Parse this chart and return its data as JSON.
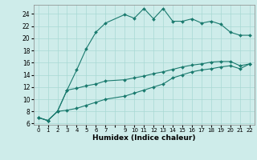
{
  "bg_color": "#ceecea",
  "grid_color": "#a8d8d4",
  "line_color": "#1a7a6e",
  "xlabel": "Humidex (Indice chaleur)",
  "xlim": [
    -0.5,
    22.5
  ],
  "ylim": [
    5.8,
    25.5
  ],
  "yticks": [
    6,
    8,
    10,
    12,
    14,
    16,
    18,
    20,
    22,
    24
  ],
  "xtick_labels": [
    "0",
    "1",
    "2",
    "3",
    "4",
    "5",
    "6",
    "7",
    "",
    "9",
    "10",
    "11",
    "12",
    "13",
    "14",
    "15",
    "16",
    "17",
    "18",
    "19",
    "20",
    "21",
    "22"
  ],
  "curve1_x": [
    0,
    1,
    2,
    3,
    4,
    5,
    6,
    7,
    9,
    10,
    11,
    12,
    13,
    14,
    15,
    16,
    17,
    18,
    19,
    20,
    21,
    22
  ],
  "curve1_y": [
    7.0,
    6.5,
    8.0,
    11.5,
    14.8,
    18.3,
    21.0,
    22.5,
    23.9,
    23.3,
    24.9,
    23.2,
    24.9,
    22.8,
    22.8,
    23.2,
    22.5,
    22.8,
    22.3,
    21.0,
    20.5,
    20.5
  ],
  "curve2_x": [
    0,
    1,
    2,
    3,
    4,
    5,
    6,
    7,
    9,
    10,
    11,
    12,
    13,
    14,
    15,
    16,
    17,
    18,
    19,
    20,
    21,
    22
  ],
  "curve2_y": [
    7.0,
    6.5,
    8.0,
    11.5,
    11.8,
    12.2,
    12.5,
    13.0,
    13.2,
    13.5,
    13.8,
    14.2,
    14.5,
    14.9,
    15.3,
    15.6,
    15.8,
    16.1,
    16.2,
    16.2,
    15.5,
    15.8
  ],
  "curve3_x": [
    0,
    1,
    2,
    3,
    4,
    5,
    6,
    7,
    9,
    10,
    11,
    12,
    13,
    14,
    15,
    16,
    17,
    18,
    19,
    20,
    21,
    22
  ],
  "curve3_y": [
    7.0,
    6.5,
    8.0,
    8.2,
    8.5,
    9.0,
    9.5,
    10.0,
    10.5,
    11.0,
    11.5,
    12.0,
    12.5,
    13.5,
    14.0,
    14.5,
    14.8,
    15.0,
    15.3,
    15.5,
    15.0,
    15.8
  ],
  "figsize": [
    3.2,
    2.0
  ],
  "dpi": 100
}
